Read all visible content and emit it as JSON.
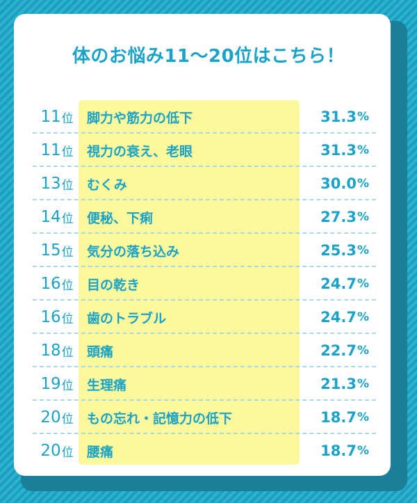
{
  "title": "体のお悩み11〜20位はこちら！",
  "rank_suffix": "位",
  "value_unit": "%",
  "chart_data": {
    "type": "table",
    "title": "体のお悩み11〜20位はこちら！",
    "columns": [
      "rank",
      "item",
      "percent"
    ],
    "rows": [
      {
        "rank": "11",
        "item": "脚力や筋力の低下",
        "value": "31.3"
      },
      {
        "rank": "11",
        "item": "視力の衰え、老眼",
        "value": "31.3"
      },
      {
        "rank": "13",
        "item": "むくみ",
        "value": "30.0"
      },
      {
        "rank": "14",
        "item": "便秘、下痢",
        "value": "27.3"
      },
      {
        "rank": "15",
        "item": "気分の落ち込み",
        "value": "25.3"
      },
      {
        "rank": "16",
        "item": "目の乾き",
        "value": "24.7"
      },
      {
        "rank": "16",
        "item": "歯のトラブル",
        "value": "24.7"
      },
      {
        "rank": "18",
        "item": "頭痛",
        "value": "22.7"
      },
      {
        "rank": "19",
        "item": "生理痛",
        "value": "21.3"
      },
      {
        "rank": "20",
        "item": "もの忘れ・記憶力の低下",
        "value": "18.7"
      },
      {
        "rank": "20",
        "item": "腰痛",
        "value": "18.7"
      }
    ]
  }
}
